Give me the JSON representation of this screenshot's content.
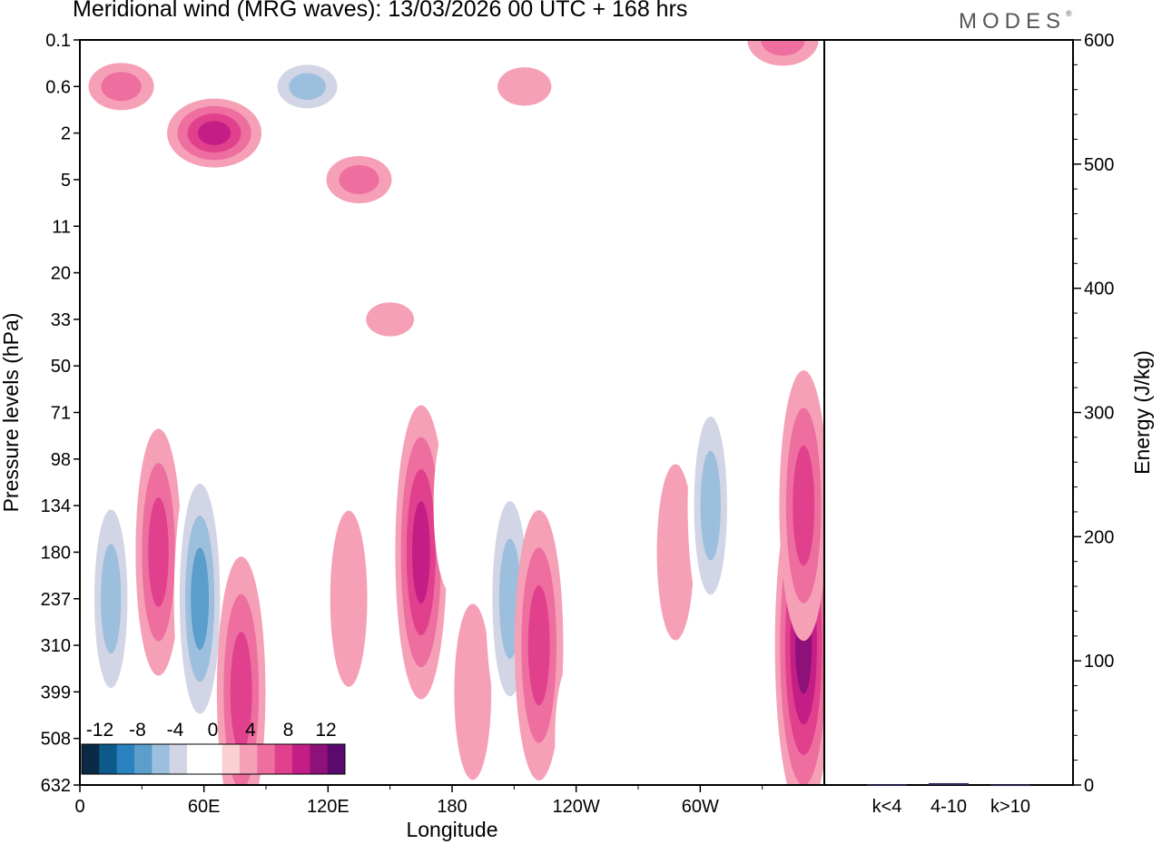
{
  "header": {
    "title": "Meridional wind (MRG waves):  13/03/2026  00 UTC  + 168 hrs",
    "logo": "MODES"
  },
  "chart_data": [
    {
      "type": "heatmap",
      "title": "Meridional wind (MRG waves):  13/03/2026  00 UTC  + 168 hrs",
      "xlabel": "Longitude",
      "ylabel": "Pressure levels (hPa)",
      "x_ticks": [
        "0",
        "60E",
        "120E",
        "180",
        "120W",
        "60W"
      ],
      "x_range": [
        0,
        360
      ],
      "y_ticks": [
        "0.1",
        "0.6",
        "2",
        "5",
        "11",
        "20",
        "33",
        "50",
        "71",
        "98",
        "134",
        "180",
        "237",
        "310",
        "399",
        "508",
        "632"
      ],
      "colorbar": {
        "levels": [
          -16,
          -14,
          -12,
          -10,
          -8,
          -6,
          -4,
          -2,
          0,
          2,
          4,
          6,
          8,
          10,
          12,
          14,
          16
        ],
        "labels": [
          "-12",
          "-8",
          "-4",
          "0",
          "4",
          "8",
          "12"
        ],
        "colors": [
          "#0a2a45",
          "#0d5a8a",
          "#2b82be",
          "#5b9dcb",
          "#9cbfdd",
          "#d2d5e6",
          "#ffffff",
          "#ffffff",
          "#fbd0d2",
          "#f5a0b6",
          "#ee6ea0",
          "#e0408c",
          "#c41e86",
          "#8e1179",
          "#5a0a6e"
        ]
      },
      "features": [
        {
          "lon": 15,
          "level": "237",
          "value": -7
        },
        {
          "lon": 28,
          "level": "134",
          "value": -2
        },
        {
          "lon": 38,
          "level": "180",
          "value": 7
        },
        {
          "lon": 58,
          "level": "237",
          "value": -9
        },
        {
          "lon": 78,
          "level": "399",
          "value": 8
        },
        {
          "lon": 105,
          "level": "508",
          "value": -3
        },
        {
          "lon": 130,
          "level": "237",
          "value": 4
        },
        {
          "lon": 152,
          "level": "180",
          "value": -3
        },
        {
          "lon": 165,
          "level": "180",
          "value": 9
        },
        {
          "lon": 180,
          "level": "134",
          "value": -4
        },
        {
          "lon": 190,
          "level": "399",
          "value": 4
        },
        {
          "lon": 208,
          "level": "237",
          "value": -8
        },
        {
          "lon": 222,
          "level": "310",
          "value": 8
        },
        {
          "lon": 238,
          "level": "508",
          "value": -3
        },
        {
          "lon": 262,
          "level": "134",
          "value": -4
        },
        {
          "lon": 288,
          "level": "180",
          "value": 4
        },
        {
          "lon": 305,
          "level": "134",
          "value": -7
        },
        {
          "lon": 350,
          "level": "310",
          "value": 11
        },
        {
          "lon": 350,
          "level": "134",
          "value": 8
        },
        {
          "lon": 110,
          "level": "0.6",
          "value": -8
        },
        {
          "lon": 65,
          "level": "2",
          "value": 10
        },
        {
          "lon": 20,
          "level": "0.6",
          "value": 5
        },
        {
          "lon": 45,
          "level": "0.1",
          "value": -4
        },
        {
          "lon": 135,
          "level": "5",
          "value": 5
        },
        {
          "lon": 340,
          "level": "0.1",
          "value": 6
        },
        {
          "lon": 320,
          "level": "2",
          "value": -3
        },
        {
          "lon": 215,
          "level": "0.6",
          "value": 3
        },
        {
          "lon": 150,
          "level": "33",
          "value": 2
        }
      ]
    },
    {
      "type": "bar",
      "ylabel": "Energy (J/kg)",
      "categories": [
        "k<4",
        "4-10",
        "k>10"
      ],
      "values": [
        0.5,
        1.5,
        0.3
      ],
      "ylim": [
        0,
        600
      ],
      "y_ticks": [
        "0",
        "100",
        "200",
        "300",
        "400",
        "500",
        "600"
      ]
    }
  ]
}
